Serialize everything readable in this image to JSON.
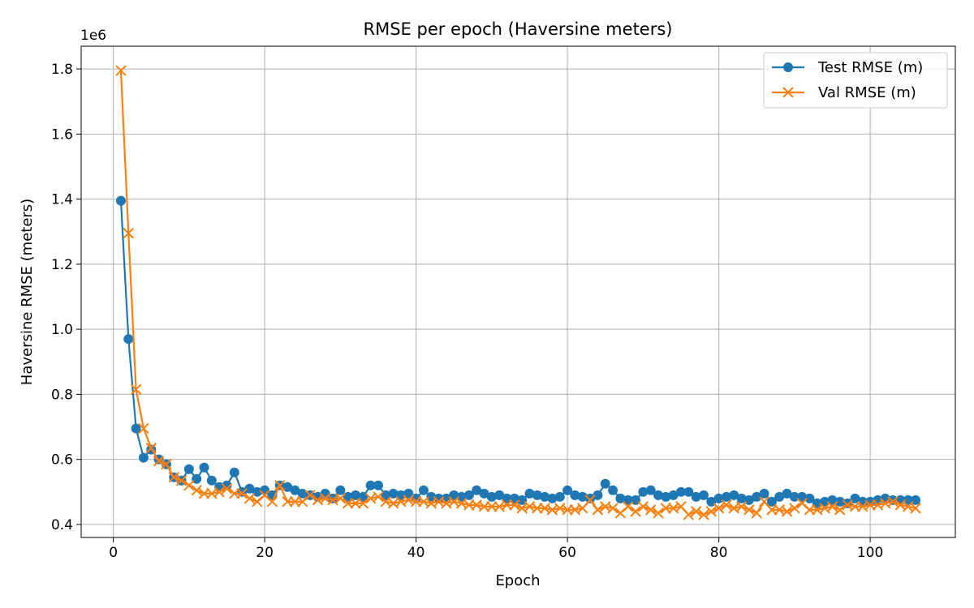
{
  "chart_data": {
    "type": "line",
    "title": "RMSE per epoch (Haversine meters)",
    "xlabel": "Epoch",
    "ylabel": "Haversine RMSE (meters)",
    "y_multiplier_label": "1e6",
    "xlim": [
      -4.25,
      111.25
    ],
    "ylim": [
      0.36,
      1.87
    ],
    "y_scale_factor": 1000000,
    "xticks": [
      0,
      20,
      40,
      60,
      80,
      100
    ],
    "yticks": [
      0.4,
      0.6,
      0.8,
      1.0,
      1.2,
      1.4,
      1.6,
      1.8
    ],
    "xtick_labels": [
      "0",
      "20",
      "40",
      "60",
      "80",
      "100"
    ],
    "ytick_labels": [
      "0.4",
      "0.6",
      "0.8",
      "1.0",
      "1.2",
      "1.4",
      "1.6",
      "1.8"
    ],
    "grid": true,
    "legend_position": "upper right",
    "x": [
      1,
      2,
      3,
      4,
      5,
      6,
      7,
      8,
      9,
      10,
      11,
      12,
      13,
      14,
      15,
      16,
      17,
      18,
      19,
      20,
      21,
      22,
      23,
      24,
      25,
      26,
      27,
      28,
      29,
      30,
      31,
      32,
      33,
      34,
      35,
      36,
      37,
      38,
      39,
      40,
      41,
      42,
      43,
      44,
      45,
      46,
      47,
      48,
      49,
      50,
      51,
      52,
      53,
      54,
      55,
      56,
      57,
      58,
      59,
      60,
      61,
      62,
      63,
      64,
      65,
      66,
      67,
      68,
      69,
      70,
      71,
      72,
      73,
      74,
      75,
      76,
      77,
      78,
      79,
      80,
      81,
      82,
      83,
      84,
      85,
      86,
      87,
      88,
      89,
      90,
      91,
      92,
      93,
      94,
      95,
      96,
      97,
      98,
      99,
      100,
      101,
      102,
      103,
      104,
      105,
      106
    ],
    "series": [
      {
        "name": "Test RMSE (m)",
        "color": "#1f77b4",
        "marker": "circle",
        "values": [
          1.395,
          0.97,
          0.695,
          0.605,
          0.63,
          0.6,
          0.585,
          0.545,
          0.535,
          0.57,
          0.54,
          0.575,
          0.535,
          0.515,
          0.52,
          0.56,
          0.5,
          0.51,
          0.5,
          0.505,
          0.49,
          0.52,
          0.515,
          0.505,
          0.495,
          0.49,
          0.485,
          0.495,
          0.48,
          0.505,
          0.485,
          0.49,
          0.485,
          0.52,
          0.52,
          0.49,
          0.495,
          0.49,
          0.495,
          0.48,
          0.505,
          0.485,
          0.48,
          0.48,
          0.49,
          0.485,
          0.49,
          0.505,
          0.495,
          0.485,
          0.49,
          0.48,
          0.48,
          0.475,
          0.495,
          0.49,
          0.485,
          0.48,
          0.485,
          0.505,
          0.49,
          0.485,
          0.48,
          0.49,
          0.525,
          0.505,
          0.48,
          0.475,
          0.475,
          0.5,
          0.505,
          0.49,
          0.485,
          0.49,
          0.5,
          0.5,
          0.485,
          0.49,
          0.47,
          0.48,
          0.485,
          0.49,
          0.48,
          0.475,
          0.485,
          0.495,
          0.47,
          0.485,
          0.495,
          0.485,
          0.485,
          0.48,
          0.465,
          0.47,
          0.475,
          0.47,
          0.465,
          0.48,
          0.47,
          0.47,
          0.475,
          0.48,
          0.475,
          0.475,
          0.475,
          0.475
        ]
      },
      {
        "name": "Val RMSE (m)",
        "color": "#ff7f0e",
        "marker": "x",
        "values": [
          1.795,
          1.295,
          0.815,
          0.695,
          0.635,
          0.595,
          0.585,
          0.545,
          0.535,
          0.52,
          0.505,
          0.495,
          0.495,
          0.5,
          0.51,
          0.495,
          0.495,
          0.48,
          0.47,
          0.49,
          0.47,
          0.52,
          0.47,
          0.47,
          0.47,
          0.49,
          0.475,
          0.48,
          0.475,
          0.48,
          0.465,
          0.465,
          0.465,
          0.48,
          0.485,
          0.47,
          0.465,
          0.47,
          0.475,
          0.47,
          0.47,
          0.465,
          0.47,
          0.465,
          0.47,
          0.465,
          0.46,
          0.46,
          0.455,
          0.455,
          0.455,
          0.46,
          0.46,
          0.45,
          0.455,
          0.45,
          0.45,
          0.445,
          0.45,
          0.445,
          0.445,
          0.45,
          0.475,
          0.445,
          0.455,
          0.45,
          0.435,
          0.455,
          0.44,
          0.455,
          0.445,
          0.435,
          0.45,
          0.45,
          0.455,
          0.43,
          0.44,
          0.43,
          0.44,
          0.45,
          0.46,
          0.45,
          0.455,
          0.445,
          0.435,
          0.47,
          0.445,
          0.445,
          0.44,
          0.45,
          0.465,
          0.445,
          0.445,
          0.45,
          0.455,
          0.445,
          0.46,
          0.455,
          0.455,
          0.46,
          0.46,
          0.465,
          0.47,
          0.46,
          0.455,
          0.45
        ]
      }
    ]
  }
}
